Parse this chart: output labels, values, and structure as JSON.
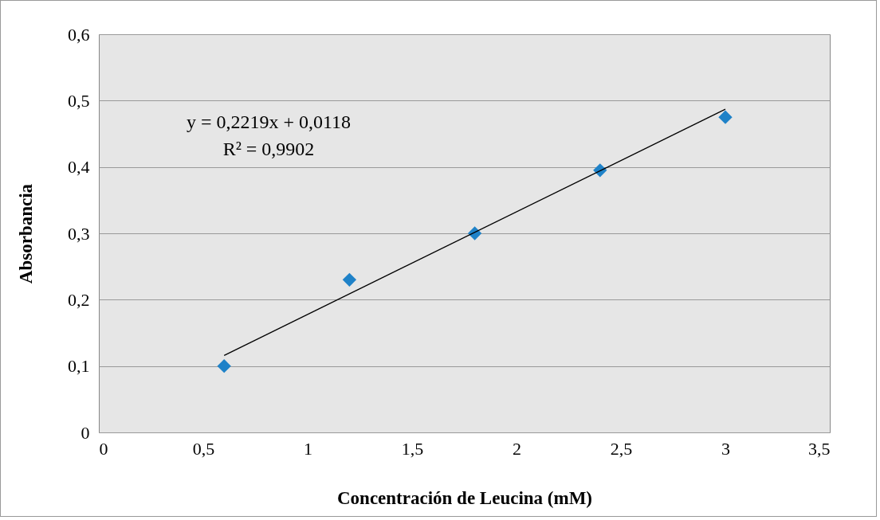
{
  "chart_data": {
    "type": "scatter",
    "xlabel": "Concentración de Leucina (mM)",
    "ylabel": "Absorbancia",
    "xlim": [
      0,
      3.5
    ],
    "ylim": [
      0,
      0.6
    ],
    "xticks": [
      0,
      {
        "value": 0.5,
        "label": "0,5"
      },
      1,
      {
        "value": 1.5,
        "label": "1,5"
      },
      2,
      {
        "value": 2.5,
        "label": "2,5"
      },
      3,
      {
        "value": 3.5,
        "label": "3,5"
      }
    ],
    "yticks": [
      0,
      {
        "value": 0.1,
        "label": "0,1"
      },
      {
        "value": 0.2,
        "label": "0,2"
      },
      {
        "value": 0.3,
        "label": "0,3"
      },
      {
        "value": 0.4,
        "label": "0,4"
      },
      {
        "value": 0.5,
        "label": "0,5"
      },
      {
        "value": 0.6,
        "label": "0,6"
      }
    ],
    "grid": "y",
    "series": [
      {
        "marker": "diamond",
        "color": "#1f82c8",
        "x": [
          0.6,
          1.2,
          1.8,
          2.4,
          3.0
        ],
        "values": [
          0.1,
          0.23,
          0.3,
          0.395,
          0.475
        ]
      },
      {
        "type": "line",
        "color": "#000000",
        "x": [
          0.6,
          3.0
        ],
        "values": [
          0.116,
          0.487
        ],
        "line_style": "solid"
      }
    ],
    "annotations": [
      "y = 0,2219x + 0,0118",
      "R² = 0,9902"
    ]
  }
}
